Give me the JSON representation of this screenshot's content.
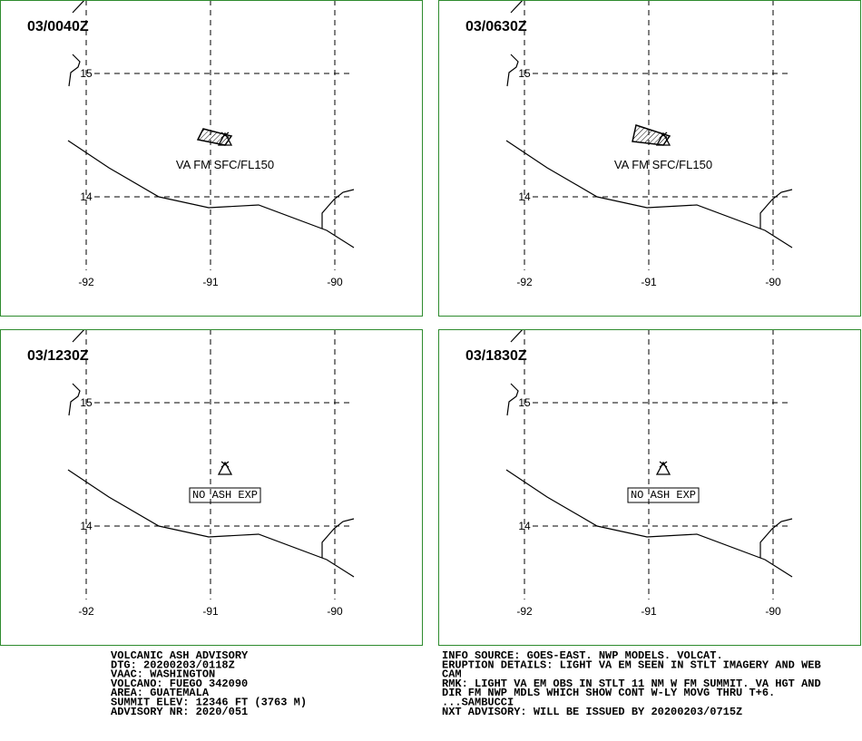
{
  "panels": [
    {
      "time": "03/0040Z",
      "label": "VA FM SFC/FL150"
    },
    {
      "time": "03/0630Z",
      "label": "VA FM SFC/FL150"
    },
    {
      "time": "03/1230Z",
      "label": "NO ASH EXP"
    },
    {
      "time": "03/1830Z",
      "label": "NO ASH EXP"
    }
  ],
  "map": {
    "lon_ticks": [
      -92,
      -91,
      -90
    ],
    "lat_ticks": [
      15,
      14
    ]
  },
  "advisory_left": [
    "VOLCANIC ASH ADVISORY",
    "DTG: 20200203/0118Z",
    "VAAC: WASHINGTON",
    "VOLCANO: FUEGO 342090",
    "AREA: GUATEMALA",
    "SUMMIT ELEV: 12346 FT (3763 M)",
    "ADVISORY NR: 2020/051"
  ],
  "advisory_right": [
    "INFO SOURCE: GOES-EAST. NWP MODELS. VOLCAT.",
    "ERUPTION DETAILS: LIGHT VA EM SEEN IN STLT IMAGERY AND WEB",
    "CAM",
    "RMK: LIGHT VA EM OBS IN STLT 11 NM W FM SUMMIT. VA HGT AND",
    "DIR FM NWP MDLS WHICH SHOW CONT W-LY MOVG THRU T+6.",
    "...SAMBUCCI",
    "NXT ADVISORY: WILL BE ISSUED BY 20200203/0715Z"
  ]
}
